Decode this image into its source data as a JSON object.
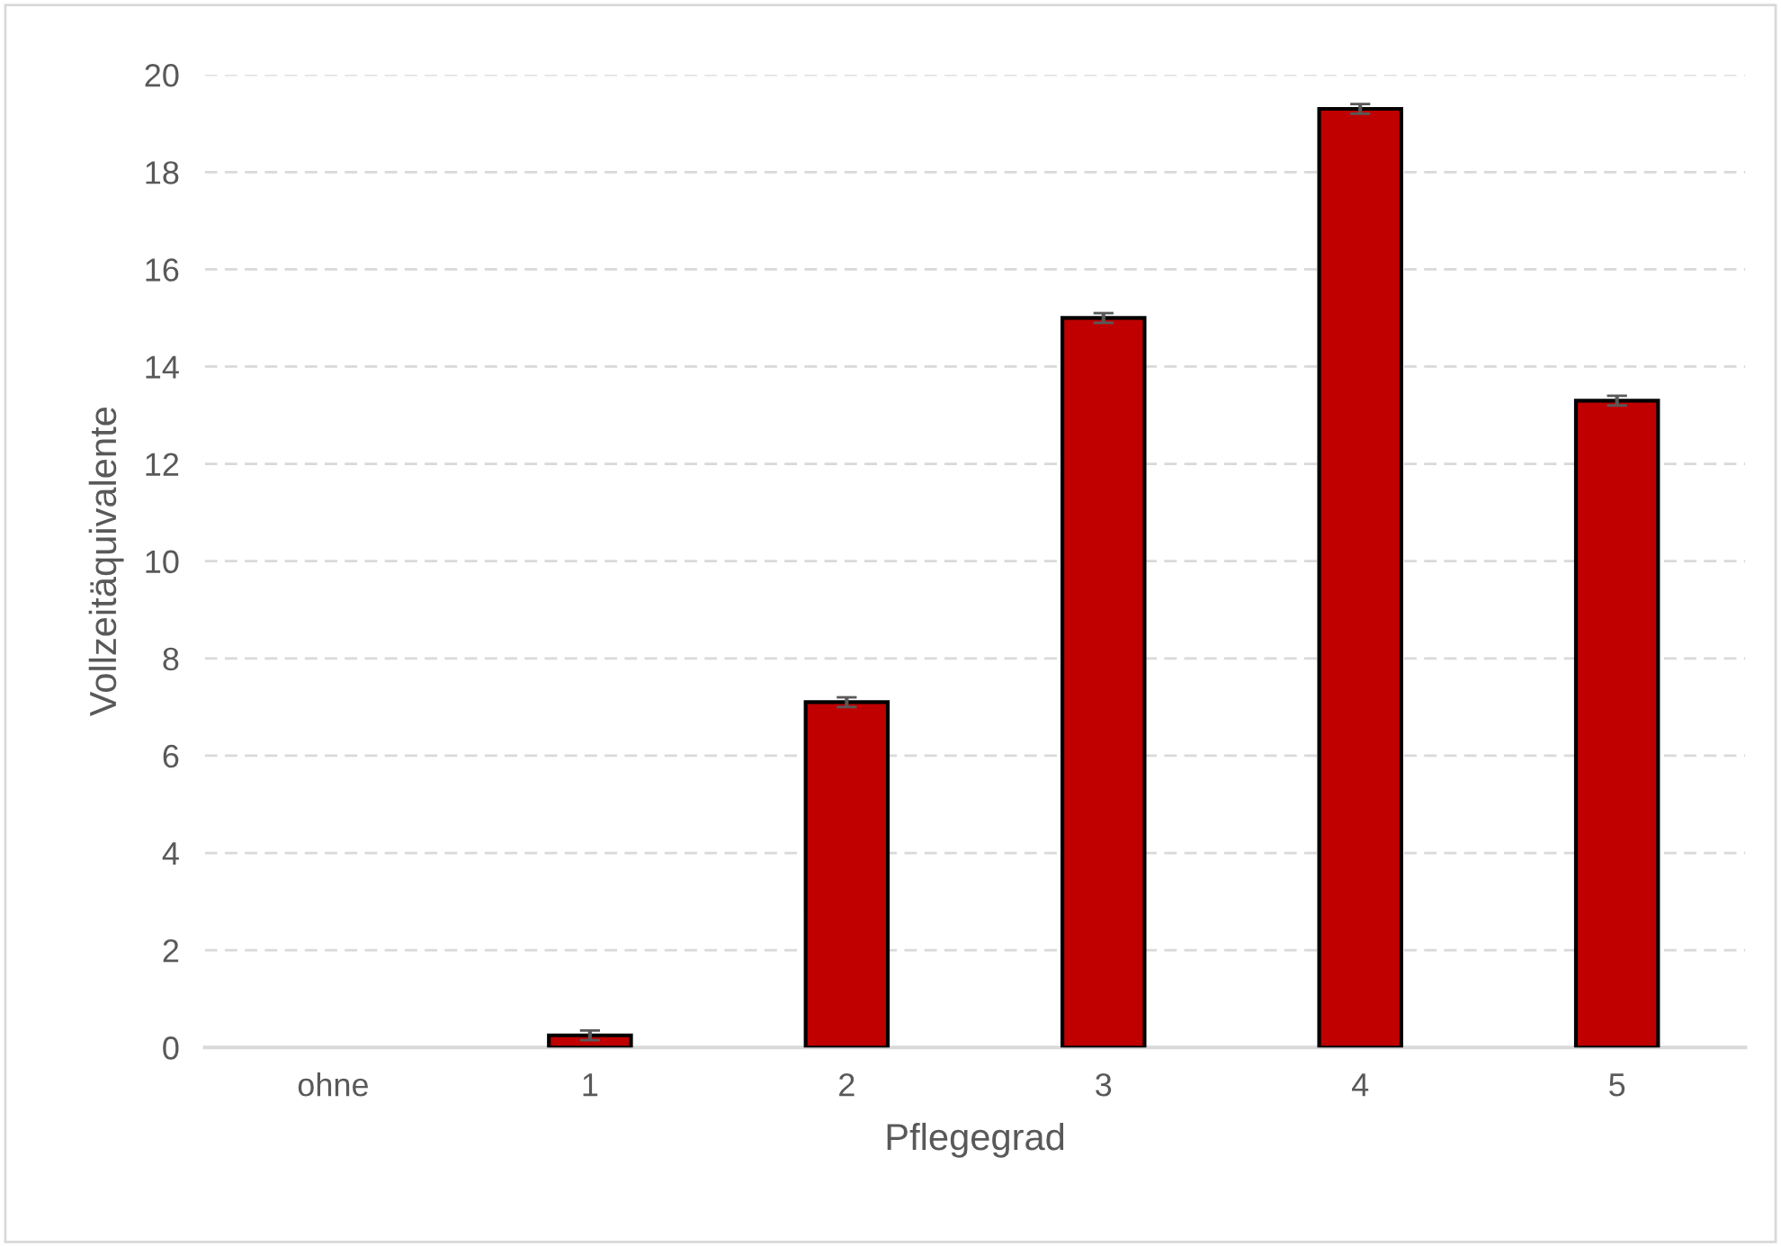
{
  "chart_data": {
    "type": "bar",
    "xlabel": "Pflegegrad",
    "ylabel": "Vollzeitäquivalente",
    "categories": [
      "ohne",
      "1",
      "2",
      "3",
      "4",
      "5"
    ],
    "values": [
      null,
      0.25,
      7.1,
      15.0,
      19.3,
      13.3
    ],
    "errors": [
      null,
      0.1,
      0.1,
      0.1,
      0.1,
      0.1
    ],
    "color": "#c00000",
    "ylim": [
      0,
      20
    ],
    "yticks": [
      0,
      2,
      4,
      6,
      8,
      10,
      12,
      14,
      16,
      18,
      20
    ],
    "grid": "y",
    "legend": false
  }
}
